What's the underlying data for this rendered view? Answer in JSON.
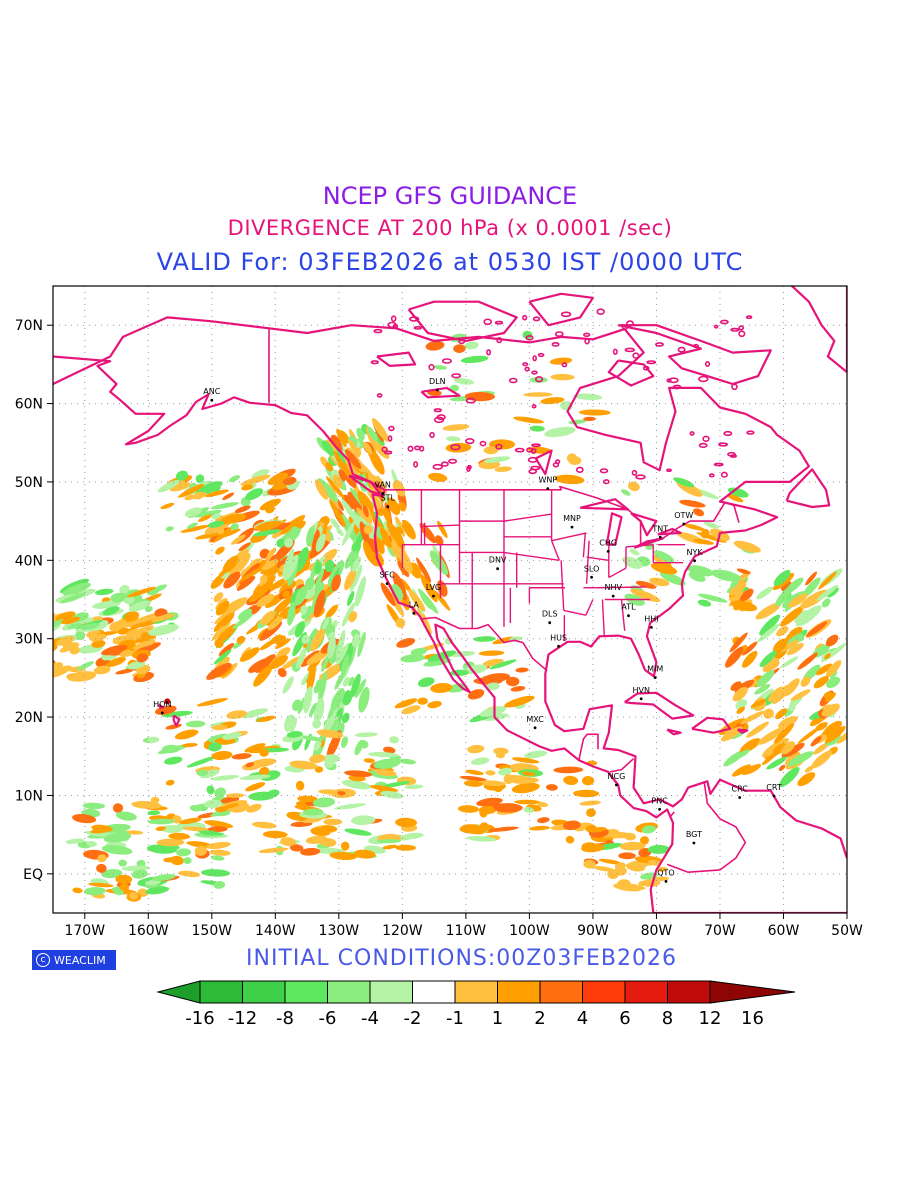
{
  "header": {
    "line1": "NCEP GFS GUIDANCE",
    "line2": "DIVERGENCE AT 200 hPa (x 0.0001 /sec)",
    "line3": "VALID For: 03FEB2026 at 0530 IST /0000 UTC"
  },
  "footer": {
    "initial_conditions": "INITIAL  CONDITIONS:00Z03FEB2026",
    "logo_text": "WEACLIM",
    "logo_icon": "copyright-circle-icon"
  },
  "map": {
    "projection": "lat-lon",
    "lon_range": [
      -175,
      -50
    ],
    "lat_range": [
      -5,
      75
    ],
    "gridlines": true,
    "lon_ticks": [
      "170W",
      "160W",
      "150W",
      "140W",
      "130W",
      "120W",
      "110W",
      "100W",
      "90W",
      "80W",
      "70W",
      "60W",
      "50W"
    ],
    "lat_ticks": [
      "70N",
      "60N",
      "50N",
      "40N",
      "30N",
      "20N",
      "10N",
      "EQ"
    ],
    "coast_color": "#e6147a",
    "stations": [
      {
        "name": "ANC",
        "lon": -150,
        "lat": 61.2
      },
      {
        "name": "DLN",
        "lon": -114.5,
        "lat": 62.5
      },
      {
        "name": "VAN",
        "lon": -123.1,
        "lat": 49.3
      },
      {
        "name": "STL",
        "lon": -122.3,
        "lat": 47.6
      },
      {
        "name": "WNP",
        "lon": -97.1,
        "lat": 49.9
      },
      {
        "name": "MNP",
        "lon": -93.3,
        "lat": 45
      },
      {
        "name": "TNT",
        "lon": -79.4,
        "lat": 43.7
      },
      {
        "name": "OTW",
        "lon": -75.7,
        "lat": 45.4
      },
      {
        "name": "CHG",
        "lon": -87.6,
        "lat": 41.9
      },
      {
        "name": "NYK",
        "lon": -74,
        "lat": 40.7
      },
      {
        "name": "DNV",
        "lon": -105,
        "lat": 39.7
      },
      {
        "name": "SLO",
        "lon": -90.2,
        "lat": 38.6
      },
      {
        "name": "SFC",
        "lon": -122.4,
        "lat": 37.8
      },
      {
        "name": "LVG",
        "lon": -115.1,
        "lat": 36.2
      },
      {
        "name": "LA",
        "lon": -118.2,
        "lat": 34
      },
      {
        "name": "NHV",
        "lon": -86.8,
        "lat": 36.2
      },
      {
        "name": "ATL",
        "lon": -84.4,
        "lat": 33.7
      },
      {
        "name": "DLS",
        "lon": -96.8,
        "lat": 32.8
      },
      {
        "name": "HHI",
        "lon": -80.8,
        "lat": 32.2
      },
      {
        "name": "HUS",
        "lon": -95.4,
        "lat": 29.8
      },
      {
        "name": "MIM",
        "lon": -80.2,
        "lat": 25.8
      },
      {
        "name": "HVN",
        "lon": -82.4,
        "lat": 23.1
      },
      {
        "name": "HON",
        "lon": -157.8,
        "lat": 21.3
      },
      {
        "name": "MXC",
        "lon": -99.1,
        "lat": 19.4
      },
      {
        "name": "NCG",
        "lon": -86.3,
        "lat": 12.1
      },
      {
        "name": "CRC",
        "lon": -66.9,
        "lat": 10.5
      },
      {
        "name": "PNC",
        "lon": -79.5,
        "lat": 9
      },
      {
        "name": "CRT",
        "lon": -61.5,
        "lat": 10.7
      },
      {
        "name": "BGT",
        "lon": -74.1,
        "lat": 4.7
      },
      {
        "name": "QTO",
        "lon": -78.5,
        "lat": -0.2
      }
    ]
  },
  "colorbar": {
    "labels": [
      "-16",
      "-12",
      "-8",
      "-6",
      "-4",
      "-2",
      "-1",
      "1",
      "2",
      "4",
      "6",
      "8",
      "12",
      "16"
    ],
    "colors": [
      "#1e9e2a",
      "#2dbb37",
      "#3fd04a",
      "#5fe85f",
      "#8ced7f",
      "#b4f3a6",
      "#ffffff",
      "#ffc040",
      "#ffa000",
      "#ff6e10",
      "#ff3c0a",
      "#e31c0f",
      "#c00b0b",
      "#8e0505"
    ]
  },
  "chart_data": {
    "type": "heatmap",
    "title": "NCEP GFS GUIDANCE",
    "subtitle": "DIVERGENCE AT 200 hPa (x 0.0001 /sec)",
    "x_ticks": [
      "170W",
      "160W",
      "150W",
      "140W",
      "130W",
      "120W",
      "110W",
      "100W",
      "90W",
      "80W",
      "70W",
      "60W",
      "50W"
    ],
    "y_ticks": [
      "70N",
      "60N",
      "50N",
      "40N",
      "30N",
      "20N",
      "10N",
      "EQ"
    ],
    "xlim": [
      -175,
      -50
    ],
    "ylim": [
      -5,
      75
    ],
    "levels": [
      -16,
      -12,
      -8,
      -6,
      -4,
      -2,
      -1,
      1,
      2,
      4,
      6,
      8,
      12,
      16
    ],
    "grid": true
  }
}
